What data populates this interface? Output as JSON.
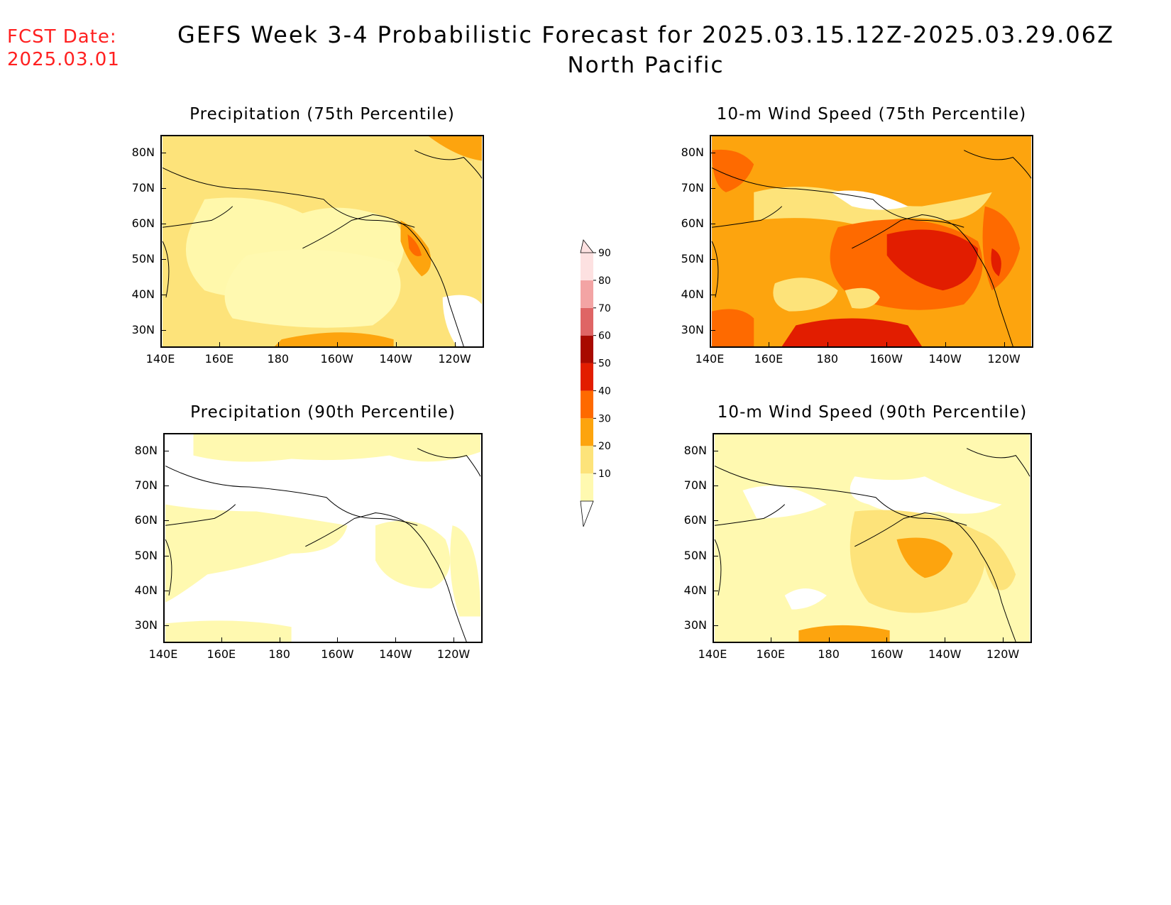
{
  "header": {
    "fcst_label": "FCST Date:",
    "fcst_date": "2025.03.01",
    "title_line1": "GEFS Week 3-4 Probabilistic Forecast for 2025.03.15.12Z-2025.03.29.06Z",
    "title_line2": "North Pacific"
  },
  "axes": {
    "y_labels": [
      "80N",
      "70N",
      "60N",
      "50N",
      "40N",
      "30N"
    ],
    "x_labels": [
      "140E",
      "160E",
      "180",
      "160W",
      "140W",
      "120W"
    ]
  },
  "panels": [
    {
      "id": "precip75",
      "title": "Precipitation (75th Percentile)"
    },
    {
      "id": "wind75",
      "title": "10-m Wind Speed (75th Percentile)"
    },
    {
      "id": "precip90",
      "title": "Precipitation (90th Percentile)"
    },
    {
      "id": "wind90",
      "title": "10-m Wind Speed (90th Percentile)"
    }
  ],
  "colorbar": {
    "levels": [
      "10",
      "20",
      "30",
      "40",
      "50",
      "60",
      "70",
      "80",
      "90"
    ],
    "colors": [
      "#fff9b0",
      "#fde37a",
      "#fda40e",
      "#fe6a00",
      "#e21d00",
      "#a80a00",
      "#df6565",
      "#f3a4a4",
      "#fde1e1"
    ]
  },
  "colors": {
    "c10": "#fff9b0",
    "c20": "#fde37a",
    "c30": "#fda40e",
    "c40": "#fe6a00",
    "c50": "#e21d00",
    "c60": "#a80a00"
  }
}
